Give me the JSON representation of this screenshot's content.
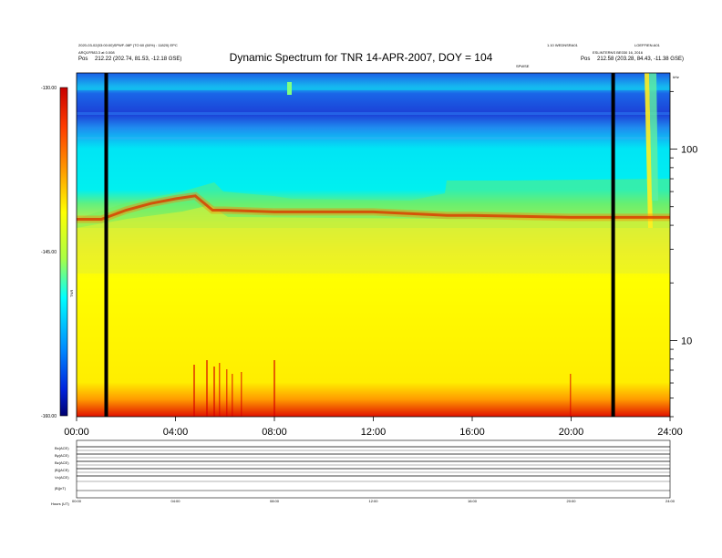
{
  "header": {
    "title": "Dynamic Spectrum for TNR 14-APR-2007, DOY = 104",
    "left_line1": "2020-03-02(03:00:00)SPWF-08P (TO 60 (60%) : 11820) EPC",
    "left_line2": "ARQ1FR83.3 at 0.008",
    "left_pos_label": "Pos",
    "left_pos_value": "212.22 (202.74, 81.53, -12.18 GSE)",
    "right_line1": "1.10 WEDNSRA01",
    "right_line2": "LOEFFIEN:A01",
    "right_line3": "ESLINTERNS BE030 16, 2016",
    "right_pos_label": "Pos",
    "right_pos_value": "212.58 (203.28, 84.43, -11.38 GSE)",
    "band_label": "SPWSE",
    "khz_label": "kHz"
  },
  "colorbar": {
    "label": "TNR",
    "ticks": [
      "-130.00",
      "-145.00",
      "-160.00"
    ]
  },
  "bottom_panels": {
    "labels": [
      "Bx(ACE)",
      "By(ACE)",
      "Bz(ACE)",
      "|B|(ACE)",
      "Vx(ACE)",
      "|B|(nT)"
    ],
    "footer": "Hours (UT)"
  },
  "chart_data": {
    "type": "heatmap",
    "title": "Dynamic Spectrum for TNR 14-APR-2007, DOY = 104",
    "x_tick_labels": [
      "00:00",
      "04:00",
      "08:00",
      "12:00",
      "16:00",
      "20:00",
      "24:00"
    ],
    "x_range_hours": [
      0,
      24
    ],
    "y_scale": "log",
    "y_unit": "kHz",
    "y_tick_labels": [
      "100",
      "10"
    ],
    "y_range_khz": [
      4,
      250
    ],
    "colorbar_range": [
      -160,
      -130
    ],
    "colorbar_ticks": [
      -130,
      -145,
      -160
    ],
    "data_gaps_hours": [
      1.2,
      21.7
    ],
    "ridge_khz_by_hour": [
      [
        0.0,
        43
      ],
      [
        1.0,
        43
      ],
      [
        2.0,
        48
      ],
      [
        3.0,
        52
      ],
      [
        4.0,
        55
      ],
      [
        4.8,
        57
      ],
      [
        5.5,
        48
      ],
      [
        6.0,
        48
      ],
      [
        8.0,
        47
      ],
      [
        12.0,
        47
      ],
      [
        15.0,
        45
      ],
      [
        16.0,
        45
      ],
      [
        20.0,
        44
      ],
      [
        22.0,
        44
      ],
      [
        24.0,
        44
      ]
    ]
  }
}
